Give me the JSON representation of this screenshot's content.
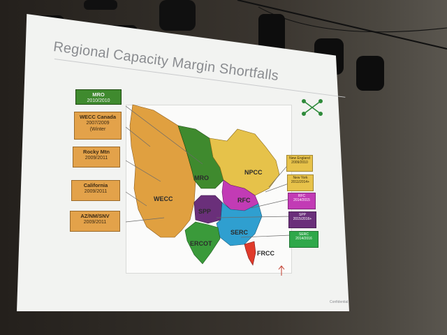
{
  "slide": {
    "title": "Regional Capacity Margin Shortfalls",
    "footer": "Confidential"
  },
  "left_labels": [
    {
      "name": "MRO",
      "years": "2010/2010",
      "extra": "",
      "color": "#3f8a2e"
    },
    {
      "name": "WECC Canada",
      "years": "2007/2009",
      "extra": "(Winter",
      "color": "#e3a24a"
    },
    {
      "name": "Rocky Mtn",
      "years": "2009/2011",
      "extra": "",
      "color": "#e3a24a"
    },
    {
      "name": "California",
      "years": "2009/2011",
      "extra": "",
      "color": "#e3a24a"
    },
    {
      "name": "AZ/NM/SNV",
      "years": "2009/2011",
      "extra": "",
      "color": "#e3a24a"
    }
  ],
  "right_tags": [
    {
      "name": "New England",
      "years": "2009/2010",
      "color": "#e7c24a",
      "text_color": "#3a2e10"
    },
    {
      "name": "New York",
      "years": "2011/2014+",
      "color": "#e7c24a",
      "text_color": "#3a2e10"
    },
    {
      "name": "RFC",
      "years": "2014/2015",
      "color": "#c23bb5",
      "text_color": "#ffffff"
    },
    {
      "name": "SPP",
      "years": "2015/2016+",
      "color": "#6a2f7a",
      "text_color": "#ffffff"
    },
    {
      "name": "SERC",
      "years": "2014/2016",
      "color": "#2fa84a",
      "text_color": "#ffffff"
    }
  ],
  "regions": {
    "wecc": "WECC",
    "mro": "MRO",
    "npcc": "NPCC",
    "rfc": "RFC",
    "spp": "SPP",
    "serc": "SERC",
    "ercot": "ERCOT",
    "frcc": "FRCC"
  },
  "colors": {
    "wecc": "#e0a040",
    "mro": "#3f8a2e",
    "npcc": "#e6c24a",
    "rfc": "#c23bb5",
    "spp": "#6a2f7a",
    "serc": "#2f9fd0",
    "ercot": "#3a9a3a",
    "frcc": "#e03a2a",
    "slide_bg": "#f2f3f1"
  }
}
